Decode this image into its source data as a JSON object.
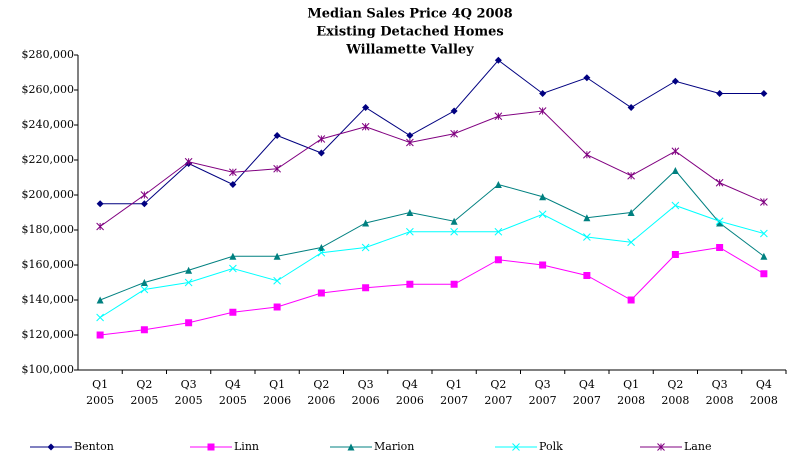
{
  "chart_data": {
    "type": "line",
    "title": [
      "Median Sales Price 4Q 2008",
      "Existing Detached Homes",
      "Willamette Valley"
    ],
    "categories": [
      [
        "Q1",
        "2005"
      ],
      [
        "Q2",
        "2005"
      ],
      [
        "Q3",
        "2005"
      ],
      [
        "Q4",
        "2005"
      ],
      [
        "Q1",
        "2006"
      ],
      [
        "Q2",
        "2006"
      ],
      [
        "Q3",
        "2006"
      ],
      [
        "Q4",
        "2006"
      ],
      [
        "Q1",
        "2007"
      ],
      [
        "Q2",
        "2007"
      ],
      [
        "Q3",
        "2007"
      ],
      [
        "Q4",
        "2007"
      ],
      [
        "Q1",
        "2008"
      ],
      [
        "Q2",
        "2008"
      ],
      [
        "Q3",
        "2008"
      ],
      [
        "Q4",
        "2008"
      ]
    ],
    "series": [
      {
        "name": "Benton",
        "color": "#000080",
        "marker": "diamond",
        "values": [
          195000,
          195000,
          218000,
          206000,
          234000,
          224000,
          250000,
          234000,
          248000,
          277000,
          258000,
          267000,
          250000,
          265000,
          258000,
          258000
        ]
      },
      {
        "name": "Linn",
        "color": "#ff00ff",
        "marker": "square",
        "values": [
          120000,
          123000,
          127000,
          133000,
          136000,
          144000,
          147000,
          149000,
          149000,
          163000,
          160000,
          154000,
          140000,
          166000,
          170000,
          155000
        ]
      },
      {
        "name": "Marion",
        "color": "#008080",
        "marker": "triangle",
        "values": [
          140000,
          150000,
          157000,
          165000,
          165000,
          170000,
          184000,
          190000,
          185000,
          206000,
          199000,
          187000,
          190000,
          214000,
          184000,
          165000
        ]
      },
      {
        "name": "Polk",
        "color": "#00ffff",
        "marker": "x",
        "values": [
          130000,
          146000,
          150000,
          158000,
          151000,
          167000,
          170000,
          179000,
          179000,
          179000,
          189000,
          176000,
          173000,
          194000,
          185000,
          178000
        ]
      },
      {
        "name": "Lane",
        "color": "#800080",
        "marker": "star",
        "values": [
          182000,
          200000,
          219000,
          213000,
          215000,
          232000,
          239000,
          230000,
          235000,
          245000,
          248000,
          223000,
          211000,
          225000,
          207000,
          196000
        ]
      }
    ],
    "ylim": [
      100000,
      280000
    ],
    "yticks": [
      {
        "value": 100000,
        "label": "$100,000"
      },
      {
        "value": 120000,
        "label": "$120,000"
      },
      {
        "value": 140000,
        "label": "$140,000"
      },
      {
        "value": 160000,
        "label": "$160,000"
      },
      {
        "value": 180000,
        "label": "$180,000"
      },
      {
        "value": 200000,
        "label": "$200,000"
      },
      {
        "value": 220000,
        "label": "$220,000"
      },
      {
        "value": 240000,
        "label": "$240,000"
      },
      {
        "value": 260000,
        "label": "$260,000"
      },
      {
        "value": 280000,
        "label": "$280,000"
      }
    ],
    "grid": false
  }
}
